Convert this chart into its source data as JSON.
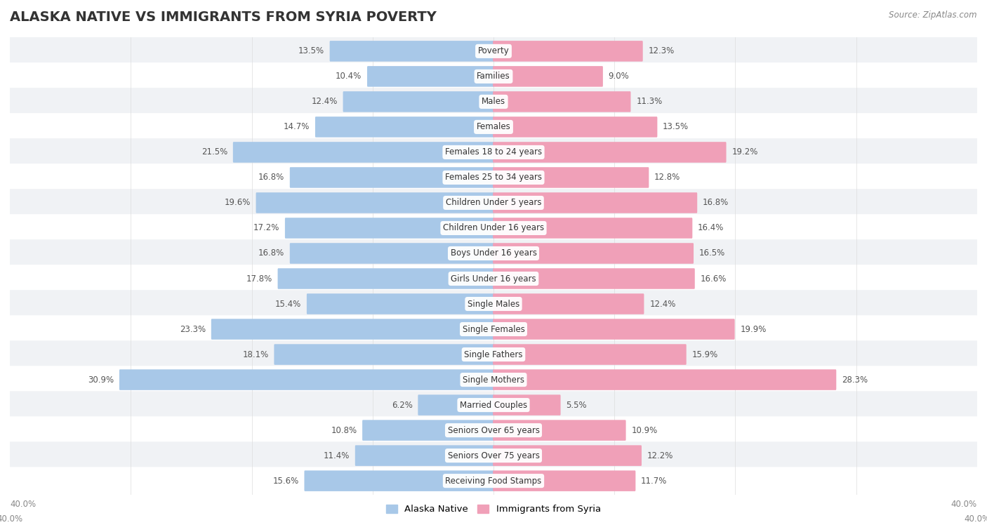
{
  "title": "ALASKA NATIVE VS IMMIGRANTS FROM SYRIA POVERTY",
  "source": "Source: ZipAtlas.com",
  "categories": [
    "Poverty",
    "Families",
    "Males",
    "Females",
    "Females 18 to 24 years",
    "Females 25 to 34 years",
    "Children Under 5 years",
    "Children Under 16 years",
    "Boys Under 16 years",
    "Girls Under 16 years",
    "Single Males",
    "Single Females",
    "Single Fathers",
    "Single Mothers",
    "Married Couples",
    "Seniors Over 65 years",
    "Seniors Over 75 years",
    "Receiving Food Stamps"
  ],
  "alaska_native": [
    13.5,
    10.4,
    12.4,
    14.7,
    21.5,
    16.8,
    19.6,
    17.2,
    16.8,
    17.8,
    15.4,
    23.3,
    18.1,
    30.9,
    6.2,
    10.8,
    11.4,
    15.6
  ],
  "immigrants_syria": [
    12.3,
    9.0,
    11.3,
    13.5,
    19.2,
    12.8,
    16.8,
    16.4,
    16.5,
    16.6,
    12.4,
    19.9,
    15.9,
    28.3,
    5.5,
    10.9,
    12.2,
    11.7
  ],
  "alaska_color": "#a8c8e8",
  "syria_color": "#f0a0b8",
  "background_row_odd": "#f0f2f5",
  "background_row_even": "#ffffff",
  "background_color": "#ffffff",
  "xlim": 40.0,
  "legend_alaska": "Alaska Native",
  "legend_syria": "Immigrants from Syria",
  "title_fontsize": 14,
  "bar_height": 0.72
}
